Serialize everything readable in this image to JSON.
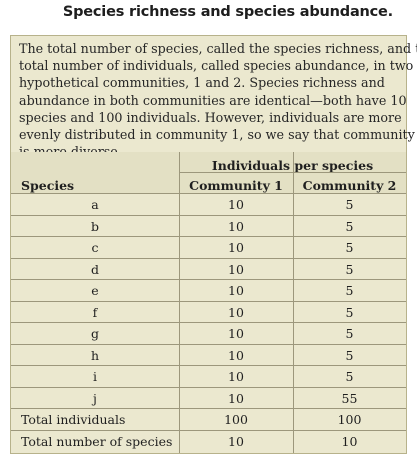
{
  "title": "Species richness and species abundance.",
  "caption_lines": [
    "The total number of species, called the species richness, and the",
    "total number of individuals, called species abundance, in two",
    "hypothetical communities, 1 and 2. Species richness and",
    "abundance in both communities are identical—both have 10",
    "species and 100 individuals. However, individuals are more",
    "evenly distributed in community 1, so we say that community 1",
    "is more diverse."
  ],
  "table": {
    "group_header": "Individuals per species",
    "col_species": "Species",
    "col_c1": "Community 1",
    "col_c2": "Community 2",
    "rows": [
      {
        "species": "a",
        "c1": "10",
        "c2": "5"
      },
      {
        "species": "b",
        "c1": "10",
        "c2": "5"
      },
      {
        "species": "c",
        "c1": "10",
        "c2": "5"
      },
      {
        "species": "d",
        "c1": "10",
        "c2": "5"
      },
      {
        "species": "e",
        "c1": "10",
        "c2": "5"
      },
      {
        "species": "f",
        "c1": "10",
        "c2": "5"
      },
      {
        "species": "g",
        "c1": "10",
        "c2": "5"
      },
      {
        "species": "h",
        "c1": "10",
        "c2": "5"
      },
      {
        "species": "i",
        "c1": "10",
        "c2": "5"
      },
      {
        "species": "j",
        "c1": "10",
        "c2": "55"
      }
    ],
    "totals": [
      {
        "label": "Total individuals",
        "c1": "100",
        "c2": "100"
      },
      {
        "label": "Total number of species",
        "c1": "10",
        "c2": "10"
      }
    ]
  }
}
